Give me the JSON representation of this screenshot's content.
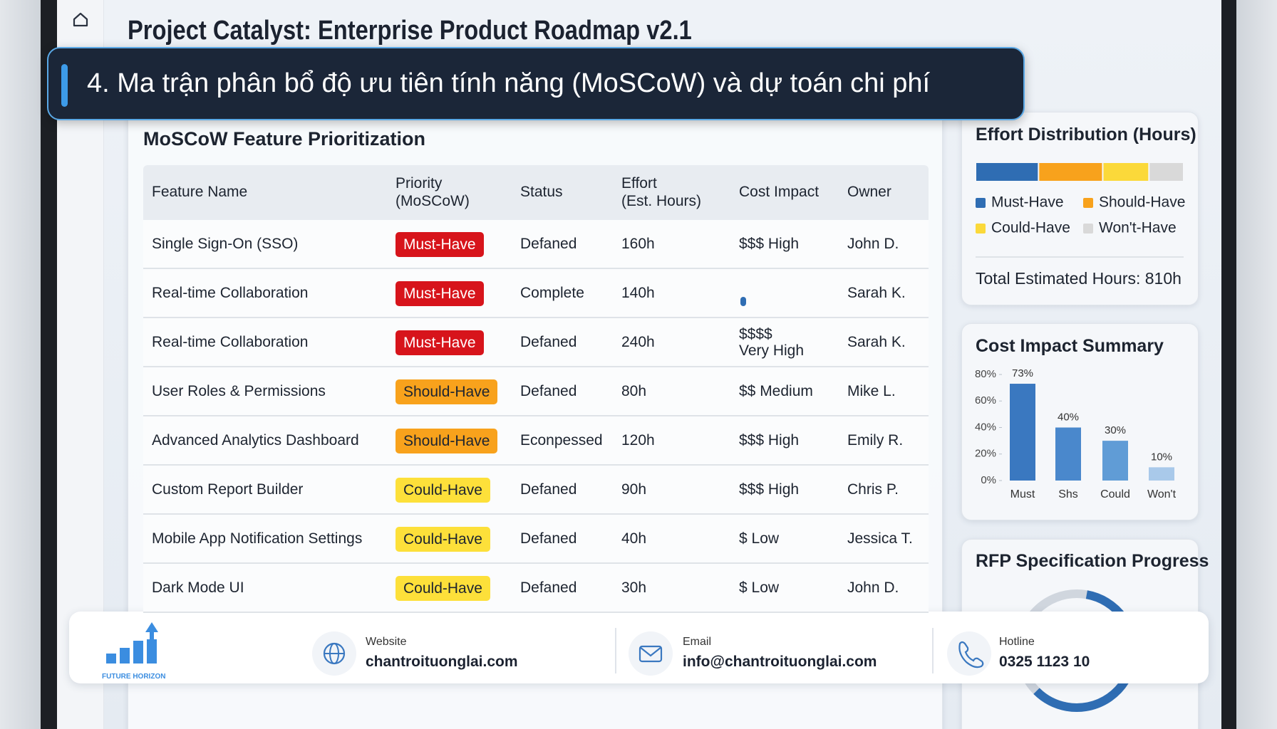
{
  "header": {
    "title": "Project Catalyst: Enterprise Product Roadmap v2.1"
  },
  "banner": {
    "text": "4. Ma trận phân bổ độ ưu tiên tính năng (MoSCoW) và dự toán chi phí"
  },
  "table": {
    "title": "MoSCoW Feature Prioritization",
    "columns": [
      "Feature Name",
      "Priority\n(MoSCoW)",
      "Status",
      "Effort\n(Est. Hours)",
      "Cost Impact",
      "Owner"
    ],
    "badge_colors": {
      "Must-Have": [
        "#d7141b",
        "#ffffff"
      ],
      "Should-Have": [
        "#f8a21c",
        "#1d2430"
      ],
      "Could-Have": [
        "#fde03a",
        "#1d2430"
      ]
    },
    "rows": [
      [
        "Single Sign-On (SSO)",
        "Must-Have",
        "Defaned",
        "160h",
        "$$$ High",
        "John D."
      ],
      [
        "Real-time Collaboration",
        "Must-Have",
        "Complete",
        "140h",
        null,
        "Sarah K."
      ],
      [
        "Real-time Collaboration",
        "Must-Have",
        "Defaned",
        "240h",
        "$$$$\nVery High",
        "Sarah K."
      ],
      [
        "User Roles & Permissions",
        "Should-Have",
        "Defaned",
        "80h",
        "$$ Medium",
        "Mike L."
      ],
      [
        "Advanced Analytics Dashboard",
        "Should-Have",
        "Econpessed",
        "120h",
        "$$$ High",
        "Emily R."
      ],
      [
        "Custom Report Builder",
        "Could-Have",
        "Defaned",
        "90h",
        "$$$ High",
        "Chris P."
      ],
      [
        "Mobile App Notification Settings",
        "Could-Have",
        "Defaned",
        "40h",
        "$ Low",
        "Jessica T."
      ],
      [
        "Dark Mode UI",
        "Could-Have",
        "Defaned",
        "30h",
        "$ Low",
        "John D."
      ]
    ]
  },
  "chart_data": [
    {
      "type": "stacked_bar",
      "title": "Effort Distribution (Hours)",
      "series": [
        {
          "name": "Must-Have",
          "color": "#2f6db3",
          "values": [
            245
          ]
        },
        {
          "name": "Should-Have",
          "color": "#f8a21c",
          "values": [
            250
          ]
        },
        {
          "name": "Could-Have",
          "color": "#fbd93a",
          "values": [
            180
          ]
        },
        {
          "name": "Won't-Have",
          "color": "#d9d9d9",
          "values": [
            135
          ]
        }
      ],
      "annotation": "Total Estimated Hours: 810h"
    },
    {
      "type": "bar",
      "title": "Cost Impact Summary",
      "categories": [
        "Must",
        "Shs",
        "Could",
        "Won't"
      ],
      "values": [
        73,
        40,
        30,
        10
      ],
      "value_labels": [
        "73%",
        "40%",
        "30%",
        "10%"
      ],
      "colors": [
        "#3a78c0",
        "#4a88cc",
        "#609cd6",
        "#a9c9ea"
      ],
      "ylim": [
        0,
        80
      ],
      "yticks": [
        {
          "value": 0,
          "label": "0%"
        },
        {
          "value": 20,
          "label": "20%"
        },
        {
          "value": 40,
          "label": "40%"
        },
        {
          "value": 60,
          "label": "60%"
        },
        {
          "value": 80,
          "label": "80%"
        }
      ]
    }
  ],
  "progress": {
    "title": "RFP Specification Progress"
  },
  "footer": {
    "brand": "FUTURE HORIZON",
    "contacts": [
      {
        "label": "Website",
        "value": "chantroituonglai.com"
      },
      {
        "label": "Email",
        "value": "info@chantroituonglai.com"
      },
      {
        "label": "Hotline",
        "value": "0325 1123 10"
      }
    ]
  }
}
